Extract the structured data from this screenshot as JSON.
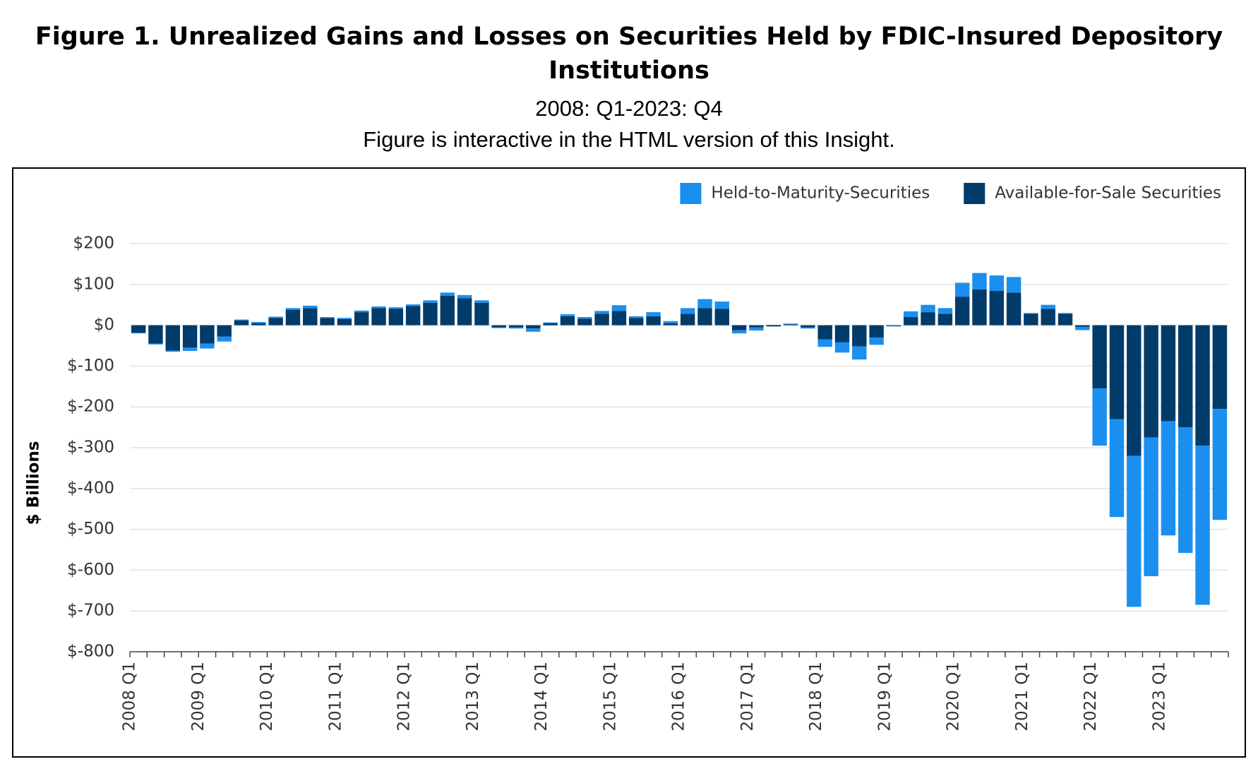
{
  "chart_data": {
    "type": "stacked_bar",
    "title": "Figure 1. Unrealized Gains and Losses on Securities Held by FDIC-Insured Depository Institutions",
    "subtitle": "2008: Q1-2023: Q4",
    "note": "Figure is interactive in the HTML version of this Insight.",
    "y_label": "$ Billions",
    "categories": [
      "2008 Q1",
      null,
      null,
      null,
      "2009 Q1",
      null,
      null,
      null,
      "2010 Q1",
      null,
      null,
      null,
      "2011 Q1",
      null,
      null,
      null,
      "2012 Q1",
      null,
      null,
      null,
      "2013 Q1",
      null,
      null,
      null,
      "2014 Q1",
      null,
      null,
      null,
      "2015 Q1",
      null,
      null,
      null,
      "2016 Q1",
      null,
      null,
      null,
      "2017 Q1",
      null,
      null,
      null,
      "2018 Q1",
      null,
      null,
      null,
      "2019 Q1",
      null,
      null,
      null,
      "2020 Q1",
      null,
      null,
      null,
      "2021 Q1",
      null,
      null,
      null,
      "2022 Q1",
      null,
      null,
      null,
      "2023 Q1",
      null,
      null,
      null
    ],
    "series": [
      {
        "name": "Available-for-Sale Securities",
        "color": "#003b6a",
        "values": [
          -18,
          -45,
          -62,
          -55,
          -45,
          -28,
          12,
          5,
          18,
          38,
          42,
          18,
          15,
          32,
          42,
          40,
          47,
          55,
          72,
          66,
          55,
          -5,
          -5,
          -8,
          5,
          22,
          16,
          28,
          35,
          18,
          22,
          5,
          28,
          42,
          40,
          -12,
          -5,
          -3,
          2,
          -5,
          -35,
          -42,
          -52,
          -30,
          -2,
          20,
          32,
          28,
          70,
          88,
          84,
          80,
          28,
          40,
          28,
          -4,
          -155,
          -230,
          -320,
          -275,
          -235,
          -250,
          -295,
          -205
        ]
      },
      {
        "name": "Held-to-Maturity-Securities",
        "color": "#1a8ff0",
        "values": [
          -2,
          -2,
          -3,
          -8,
          -12,
          -12,
          2,
          3,
          3,
          4,
          6,
          2,
          3,
          4,
          4,
          4,
          4,
          6,
          8,
          8,
          6,
          -2,
          -3,
          -8,
          2,
          5,
          4,
          7,
          14,
          4,
          10,
          5,
          14,
          22,
          18,
          -8,
          -8,
          1,
          2,
          -3,
          -18,
          -25,
          -32,
          -18,
          -1,
          14,
          18,
          14,
          34,
          40,
          38,
          38,
          2,
          10,
          2,
          -8,
          -140,
          -240,
          -370,
          -340,
          -280,
          -308,
          -390,
          -272
        ]
      }
    ],
    "legend_order": [
      1,
      0
    ],
    "ylim": [
      -800,
      200
    ],
    "yticks": [
      {
        "value": -800,
        "label": "$-800"
      },
      {
        "value": -700,
        "label": "$-700"
      },
      {
        "value": -600,
        "label": "$-600"
      },
      {
        "value": -500,
        "label": "$-500"
      },
      {
        "value": -400,
        "label": "$-400"
      },
      {
        "value": -300,
        "label": "$-300"
      },
      {
        "value": -200,
        "label": "$-200"
      },
      {
        "value": -100,
        "label": "$-100"
      },
      {
        "value": 0,
        "label": "$0"
      },
      {
        "value": 100,
        "label": "$100"
      },
      {
        "value": 200,
        "label": "$200"
      }
    ],
    "grid": true,
    "legend": "top-right"
  }
}
